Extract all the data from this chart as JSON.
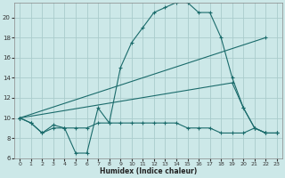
{
  "xlabel": "Humidex (Indice chaleur)",
  "background_color": "#cce8e8",
  "grid_color": "#aacccc",
  "line_color": "#1a6b6b",
  "xlim": [
    -0.5,
    23.5
  ],
  "ylim": [
    6,
    21.5
  ],
  "yticks": [
    6,
    8,
    10,
    12,
    14,
    16,
    18,
    20
  ],
  "xticks": [
    0,
    1,
    2,
    3,
    4,
    5,
    6,
    7,
    8,
    9,
    10,
    11,
    12,
    13,
    14,
    15,
    16,
    17,
    18,
    19,
    20,
    21,
    22,
    23
  ],
  "lines": [
    {
      "x": [
        0,
        1,
        2,
        3,
        4,
        5,
        6,
        7,
        8,
        9,
        10,
        11,
        12,
        13,
        14,
        15,
        16,
        17,
        18,
        19,
        20,
        21,
        22,
        23
      ],
      "y": [
        10,
        9.5,
        8.5,
        9.3,
        9.0,
        6.5,
        6.5,
        11.0,
        9.5,
        15.0,
        17.5,
        19.0,
        20.5,
        21.0,
        21.5,
        21.5,
        20.5,
        20.5,
        18.0,
        14.0,
        11.0,
        9.0,
        8.5,
        8.5
      ]
    },
    {
      "x": [
        0,
        22
      ],
      "y": [
        10,
        18
      ]
    },
    {
      "x": [
        0,
        1,
        2,
        3,
        4,
        5,
        6,
        7,
        8,
        9,
        10,
        11,
        12,
        13,
        14,
        15,
        16,
        17,
        18,
        19,
        20,
        21,
        22,
        23
      ],
      "y": [
        10,
        9.5,
        8.5,
        9.0,
        9.0,
        9.0,
        9.0,
        9.5,
        9.5,
        9.5,
        9.5,
        9.5,
        9.5,
        9.5,
        9.5,
        9.0,
        9.0,
        9.0,
        8.5,
        8.5,
        8.5,
        9.0,
        8.5,
        8.5
      ]
    },
    {
      "x": [
        0,
        19,
        20,
        21,
        22,
        23
      ],
      "y": [
        10,
        13.5,
        11.0,
        9.0,
        8.5,
        8.5
      ]
    }
  ]
}
